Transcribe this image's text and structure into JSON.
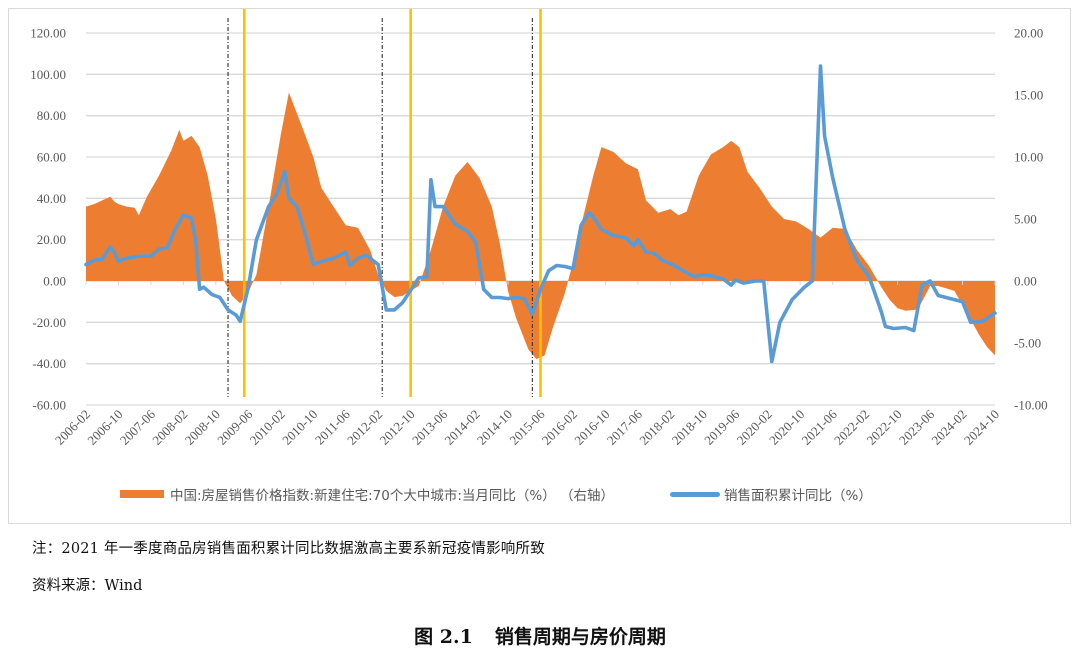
{
  "chart_data": {
    "type": "area+line",
    "title": "",
    "xlabel": "",
    "ylabel_left": "",
    "ylabel_right": "",
    "x_ticks": [
      "2006-02",
      "2006-10",
      "2007-06",
      "2008-02",
      "2008-10",
      "2009-06",
      "2010-02",
      "2010-10",
      "2011-06",
      "2012-02",
      "2012-10",
      "2013-06",
      "2014-02",
      "2014-10",
      "2015-06",
      "2016-02",
      "2016-10",
      "2017-06",
      "2018-02",
      "2018-10",
      "2019-06",
      "2020-02",
      "2020-10",
      "2021-06",
      "2022-02",
      "2022-10",
      "2023-06",
      "2024-02",
      "2024-10"
    ],
    "x_start": "2006-02",
    "x_end": "2024-10",
    "left_axis": {
      "ticks": [
        "120.00",
        "100.00",
        "80.00",
        "60.00",
        "40.00",
        "20.00",
        "0.00",
        "-20.00",
        "-40.00",
        "-60.00"
      ],
      "ylim": [
        -60,
        120
      ],
      "series": "销售面积累计同比（%）"
    },
    "right_axis": {
      "ticks": [
        "20.00",
        "15.00",
        "10.00",
        "5.00",
        "0.00",
        "-5.00",
        "-10.00"
      ],
      "ylim": [
        -10,
        20
      ],
      "series": "中国:房屋销售价格指数:新建住宅:70个大中城市:当月同比（%）（右轴）"
    },
    "grid": true,
    "legend_position": "bottom",
    "series": [
      {
        "name": "中国:房屋销售价格指数:新建住宅:70个大中城市:当月同比（%）（右轴）",
        "type": "area",
        "axis": "right",
        "color": "#ED7D31",
        "keypoints": [
          [
            "2006-02",
            6.0
          ],
          [
            "2006-04",
            6.2
          ],
          [
            "2006-06",
            6.5
          ],
          [
            "2006-08",
            6.8
          ],
          [
            "2006-09",
            6.4
          ],
          [
            "2006-10",
            6.2
          ],
          [
            "2006-12",
            6.0
          ],
          [
            "2007-02",
            5.9
          ],
          [
            "2007-03",
            5.3
          ],
          [
            "2007-05",
            6.8
          ],
          [
            "2007-08",
            8.5
          ],
          [
            "2007-11",
            10.5
          ],
          [
            "2008-01",
            12.2
          ],
          [
            "2008-02",
            11.3
          ],
          [
            "2008-04",
            11.7
          ],
          [
            "2008-06",
            10.8
          ],
          [
            "2008-08",
            8.5
          ],
          [
            "2008-10",
            5.0
          ],
          [
            "2008-12",
            0.0
          ],
          [
            "2009-02",
            -1.2
          ],
          [
            "2009-04",
            -1.8
          ],
          [
            "2009-06",
            -0.9
          ],
          [
            "2009-08",
            0.5
          ],
          [
            "2009-11",
            6.0
          ],
          [
            "2010-02",
            11.8
          ],
          [
            "2010-04",
            15.2
          ],
          [
            "2010-06",
            13.5
          ],
          [
            "2010-08",
            11.8
          ],
          [
            "2010-10",
            10.0
          ],
          [
            "2010-12",
            7.5
          ],
          [
            "2011-03",
            6.0
          ],
          [
            "2011-06",
            4.5
          ],
          [
            "2011-09",
            4.3
          ],
          [
            "2011-12",
            2.5
          ],
          [
            "2012-02",
            0.5
          ],
          [
            "2012-04",
            -0.8
          ],
          [
            "2012-06",
            -1.3
          ],
          [
            "2012-08",
            -1.2
          ],
          [
            "2012-10",
            -0.8
          ],
          [
            "2012-12",
            -0.4
          ],
          [
            "2013-03",
            2.5
          ],
          [
            "2013-06",
            6.0
          ],
          [
            "2013-09",
            8.5
          ],
          [
            "2013-12",
            9.6
          ],
          [
            "2014-03",
            8.3
          ],
          [
            "2014-06",
            6.0
          ],
          [
            "2014-08",
            3.0
          ],
          [
            "2014-10",
            -0.8
          ],
          [
            "2014-12",
            -3.0
          ],
          [
            "2015-03",
            -5.5
          ],
          [
            "2015-05",
            -6.3
          ],
          [
            "2015-07",
            -6.0
          ],
          [
            "2015-09",
            -3.8
          ],
          [
            "2015-12",
            -1.0
          ],
          [
            "2016-02",
            1.5
          ],
          [
            "2016-04",
            4.5
          ],
          [
            "2016-07",
            8.5
          ],
          [
            "2016-09",
            10.8
          ],
          [
            "2016-12",
            10.4
          ],
          [
            "2017-03",
            9.5
          ],
          [
            "2017-06",
            9.0
          ],
          [
            "2017-08",
            6.5
          ],
          [
            "2017-11",
            5.5
          ],
          [
            "2018-02",
            5.8
          ],
          [
            "2018-04",
            5.3
          ],
          [
            "2018-06",
            5.6
          ],
          [
            "2018-09",
            8.5
          ],
          [
            "2018-12",
            10.2
          ],
          [
            "2019-03",
            10.8
          ],
          [
            "2019-05",
            11.3
          ],
          [
            "2019-07",
            10.8
          ],
          [
            "2019-09",
            8.8
          ],
          [
            "2019-12",
            7.5
          ],
          [
            "2020-03",
            6.0
          ],
          [
            "2020-06",
            5.0
          ],
          [
            "2020-09",
            4.8
          ],
          [
            "2020-12",
            4.2
          ],
          [
            "2021-03",
            3.5
          ],
          [
            "2021-06",
            4.3
          ],
          [
            "2021-09",
            4.2
          ],
          [
            "2021-12",
            2.5
          ],
          [
            "2022-03",
            1.2
          ],
          [
            "2022-06",
            -0.5
          ],
          [
            "2022-08",
            -1.5
          ],
          [
            "2022-10",
            -2.2
          ],
          [
            "2022-12",
            -2.4
          ],
          [
            "2023-03",
            -2.3
          ],
          [
            "2023-06",
            -0.4
          ],
          [
            "2023-08",
            -0.4
          ],
          [
            "2023-10",
            -0.6
          ],
          [
            "2023-12",
            -0.8
          ],
          [
            "2024-03",
            -2.5
          ],
          [
            "2024-06",
            -4.3
          ],
          [
            "2024-08",
            -5.3
          ],
          [
            "2024-10",
            -6.0
          ]
        ]
      },
      {
        "name": "销售面积累计同比（%）",
        "type": "line",
        "axis": "left",
        "color": "#5B9BD5",
        "keypoints": [
          [
            "2006-02",
            8.0
          ],
          [
            "2006-04",
            10.0
          ],
          [
            "2006-06",
            10.5
          ],
          [
            "2006-08",
            16.5
          ],
          [
            "2006-09",
            14.0
          ],
          [
            "2006-10",
            9.5
          ],
          [
            "2006-12",
            11.0
          ],
          [
            "2007-03",
            12.0
          ],
          [
            "2007-06",
            12.0
          ],
          [
            "2007-08",
            15.5
          ],
          [
            "2007-10",
            16.0
          ],
          [
            "2007-12",
            25.0
          ],
          [
            "2008-02",
            32.0
          ],
          [
            "2008-04",
            30.5
          ],
          [
            "2008-05",
            20.0
          ],
          [
            "2008-06",
            -4.0
          ],
          [
            "2008-07",
            -3.0
          ],
          [
            "2008-09",
            -6.5
          ],
          [
            "2008-11",
            -8.0
          ],
          [
            "2009-01",
            -14.0
          ],
          [
            "2009-03",
            -16.5
          ],
          [
            "2009-04",
            -19.5
          ],
          [
            "2009-06",
            -3.0
          ],
          [
            "2009-08",
            20.0
          ],
          [
            "2009-11",
            36.0
          ],
          [
            "2010-01",
            42.0
          ],
          [
            "2010-03",
            53.0
          ],
          [
            "2010-04",
            40.0
          ],
          [
            "2010-06",
            36.0
          ],
          [
            "2010-08",
            23.0
          ],
          [
            "2010-10",
            8.0
          ],
          [
            "2010-12",
            9.5
          ],
          [
            "2011-03",
            11.0
          ],
          [
            "2011-06",
            14.0
          ],
          [
            "2011-07",
            7.5
          ],
          [
            "2011-09",
            11.0
          ],
          [
            "2011-11",
            12.5
          ],
          [
            "2012-02",
            8.0
          ],
          [
            "2012-04",
            -14.0
          ],
          [
            "2012-06",
            -14.0
          ],
          [
            "2012-08",
            -10.5
          ],
          [
            "2012-10",
            -4.5
          ],
          [
            "2012-12",
            1.5
          ],
          [
            "2013-02",
            2.0
          ],
          [
            "2013-03",
            49.0
          ],
          [
            "2013-04",
            36.0
          ],
          [
            "2013-06",
            36.0
          ],
          [
            "2013-09",
            27.5
          ],
          [
            "2013-12",
            24.0
          ],
          [
            "2014-02",
            19.0
          ],
          [
            "2014-04",
            -4.0
          ],
          [
            "2014-06",
            -8.0
          ],
          [
            "2014-08",
            -8.0
          ],
          [
            "2014-10",
            -8.5
          ],
          [
            "2014-12",
            -8.0
          ],
          [
            "2015-02",
            -8.5
          ],
          [
            "2015-04",
            -16.0
          ],
          [
            "2015-06",
            -4.0
          ],
          [
            "2015-08",
            5.0
          ],
          [
            "2015-10",
            7.5
          ],
          [
            "2015-12",
            7.0
          ],
          [
            "2016-02",
            6.0
          ],
          [
            "2016-04",
            27.0
          ],
          [
            "2016-06",
            33.0
          ],
          [
            "2016-07",
            31.0
          ],
          [
            "2016-09",
            25.0
          ],
          [
            "2016-12",
            22.0
          ],
          [
            "2017-03",
            21.0
          ],
          [
            "2017-05",
            17.0
          ],
          [
            "2017-06",
            20.0
          ],
          [
            "2017-08",
            14.0
          ],
          [
            "2017-10",
            13.5
          ],
          [
            "2017-12",
            10.0
          ],
          [
            "2018-03",
            7.5
          ],
          [
            "2018-06",
            4.0
          ],
          [
            "2018-08",
            2.0
          ],
          [
            "2018-10",
            3.0
          ],
          [
            "2018-12",
            2.5
          ],
          [
            "2019-03",
            1.0
          ],
          [
            "2019-05",
            -2.0
          ],
          [
            "2019-06",
            0.5
          ],
          [
            "2019-08",
            -1.0
          ],
          [
            "2019-11",
            0.0
          ],
          [
            "2020-01",
            0.0
          ],
          [
            "2020-03",
            -39.0
          ],
          [
            "2020-05",
            -20.0
          ],
          [
            "2020-08",
            -9.0
          ],
          [
            "2020-11",
            -3.0
          ],
          [
            "2021-01",
            0.0
          ],
          [
            "2021-03",
            104.0
          ],
          [
            "2021-04",
            70.0
          ],
          [
            "2021-06",
            50.0
          ],
          [
            "2021-09",
            25.0
          ],
          [
            "2021-12",
            10.0
          ],
          [
            "2022-03",
            2.0
          ],
          [
            "2022-06",
            -15.0
          ],
          [
            "2022-07",
            -22.0
          ],
          [
            "2022-09",
            -23.0
          ],
          [
            "2022-12",
            -22.5
          ],
          [
            "2023-02",
            -24.0
          ],
          [
            "2023-04",
            -2.0
          ],
          [
            "2023-06",
            0.0
          ],
          [
            "2023-08",
            -7.0
          ],
          [
            "2023-11",
            -8.5
          ],
          [
            "2024-02",
            -10.0
          ],
          [
            "2024-04",
            -20.0
          ],
          [
            "2024-07",
            -19.5
          ],
          [
            "2024-10",
            -15.5
          ]
        ]
      }
    ],
    "annotations": {
      "dashdot_lines_black": [
        "2009-01",
        "2012-03",
        "2015-04"
      ],
      "solid_lines_gold": [
        "2009-05",
        "2012-10",
        "2015-06"
      ]
    }
  },
  "legend": {
    "area_label": "中国:房屋销售价格指数:新建住宅:70个大中城市:当月同比（%） （右轴）",
    "line_label": "销售面积累计同比（%）"
  },
  "note": "注：2021 年一季度商品房销售面积累计同比数据激高主要系新冠疫情影响所致",
  "source": "资料来源：Wind",
  "caption": {
    "number": "图 2.1",
    "title": "销售周期与房价周期"
  },
  "colors": {
    "area": "#ED7D31",
    "line": "#5B9BD5",
    "marker_gold": "#FFC000",
    "dashdot": "#404040",
    "grid": "#d9d9d9",
    "tick_text": "#595959"
  }
}
